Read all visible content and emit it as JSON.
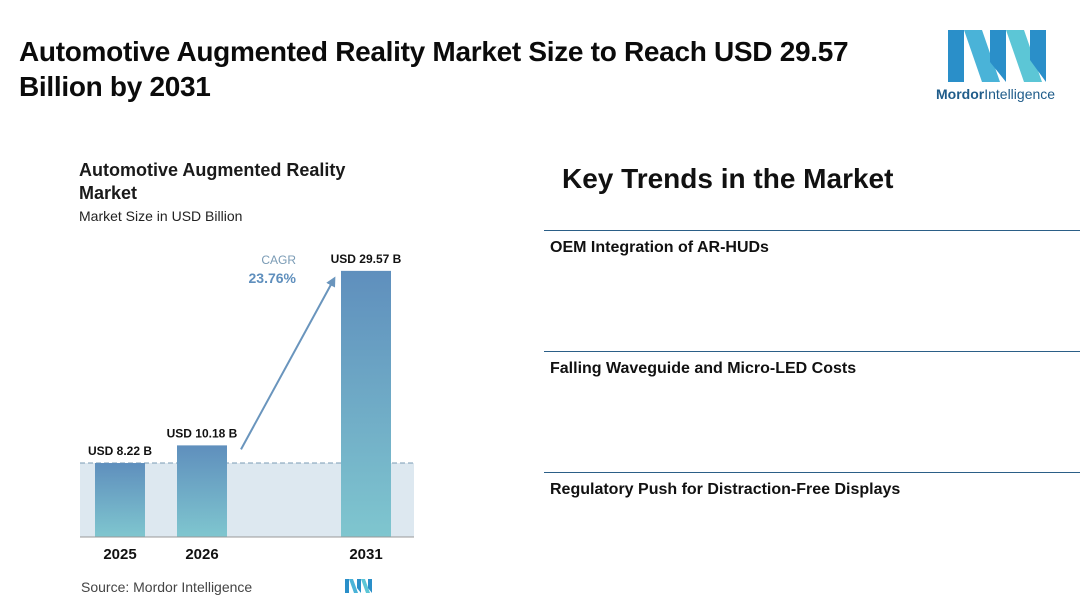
{
  "headline": "Automotive Augmented Reality Market Size to Reach USD 29.57 Billion by 2031",
  "logo": {
    "word1": "Mordor",
    "word2": "Intelligence",
    "icon": "mordor-intelligence-logo"
  },
  "chart_data": {
    "type": "bar",
    "title": "Automotive Augmented Reality Market",
    "subtitle": "Market Size in USD Billion",
    "categories": [
      "2025",
      "2026",
      "2031"
    ],
    "values": [
      8.22,
      10.18,
      29.57
    ],
    "value_labels": [
      "USD 8.22 B",
      "USD 10.18 B",
      "USD 29.57 B"
    ],
    "cagr_label": "CAGR",
    "cagr_value": "23.76%",
    "ylim": [
      0,
      30
    ],
    "colors": {
      "bar_top": "#5f8fbd",
      "bar_bottom": "#7fc6cf",
      "band": "#dde8f0",
      "arrow": "#6a95bd"
    },
    "source": "Source:  Mordor Intelligence"
  },
  "trends": {
    "title": "Key Trends in the Market",
    "items": [
      "OEM Integration of AR-HUDs",
      "Falling Waveguide and Micro-LED Costs",
      "Regulatory Push for Distraction-Free Displays"
    ]
  }
}
